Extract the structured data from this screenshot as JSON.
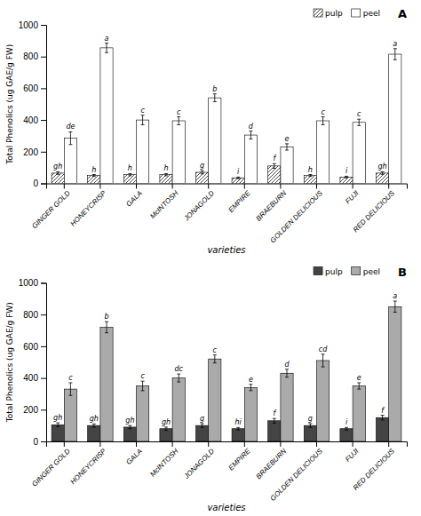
{
  "chart_data": [
    {
      "type": "bar",
      "title": "A",
      "categories": [
        "GINGER GOLD",
        "HONEYCRISP",
        "GALA",
        "McINTOSH",
        "JONAGOLD",
        "EMPIRE",
        "BRAEBURN",
        "GOLDEN DELICIOUS",
        "FUJI",
        "RED DELICIOUS"
      ],
      "series": [
        {
          "name": "pulp",
          "color": "white",
          "values": [
            65,
            50,
            55,
            55,
            70,
            35,
            110,
            50,
            40,
            65
          ],
          "errors": [
            8,
            6,
            7,
            7,
            10,
            5,
            15,
            6,
            5,
            8
          ],
          "letters": [
            "gh",
            "h",
            "h",
            "h",
            "g",
            "i",
            "f",
            "h",
            "i",
            "gh"
          ]
        },
        {
          "name": "peel",
          "color": "white",
          "values": [
            285,
            855,
            400,
            395,
            540,
            305,
            230,
            395,
            385,
            815
          ],
          "errors": [
            40,
            30,
            30,
            25,
            25,
            25,
            20,
            25,
            20,
            35
          ],
          "letters": [
            "de",
            "a",
            "c",
            "c",
            "b",
            "d",
            "e",
            "c",
            "c",
            "a"
          ]
        }
      ],
      "xlabel": "varieties",
      "ylabel": "Total Phenolics (ug GAE/g FW)",
      "ylim": [
        0,
        1000
      ],
      "yticks": [
        0,
        200,
        400,
        600,
        800,
        1000
      ],
      "legend": "upper right"
    },
    {
      "type": "bar",
      "title": "B",
      "categories": [
        "GINGER GOLD",
        "HONEYCRISP",
        "GALA",
        "McINTOSH",
        "JONAGOLD",
        "EMPIRE",
        "BRAEBURN",
        "GOLDEN DELICIOUS",
        "FUJI",
        "RED DELICIOUS"
      ],
      "series": [
        {
          "name": "pulp",
          "color": "#444444",
          "values": [
            105,
            100,
            90,
            80,
            100,
            80,
            130,
            100,
            80,
            150
          ],
          "errors": [
            12,
            10,
            10,
            10,
            12,
            8,
            15,
            12,
            8,
            15
          ],
          "letters": [
            "gh",
            "gh",
            "gh",
            "gh",
            "g",
            "hi",
            "f",
            "g",
            "i",
            "f"
          ]
        },
        {
          "name": "peel",
          "color": "#aaaaaa",
          "values": [
            330,
            720,
            350,
            400,
            520,
            340,
            430,
            510,
            350,
            850
          ],
          "errors": [
            40,
            35,
            30,
            25,
            25,
            20,
            25,
            40,
            20,
            35
          ],
          "letters": [
            "c",
            "b",
            "c",
            "dc",
            "c",
            "e",
            "d",
            "cd",
            "e",
            "a"
          ]
        }
      ],
      "xlabel": "varieties",
      "ylabel": "Total Phenolics (ug GAE/g FW)",
      "ylim": [
        0,
        1000
      ],
      "yticks": [
        0,
        200,
        400,
        600,
        800,
        1000
      ],
      "legend": "upper right"
    }
  ]
}
